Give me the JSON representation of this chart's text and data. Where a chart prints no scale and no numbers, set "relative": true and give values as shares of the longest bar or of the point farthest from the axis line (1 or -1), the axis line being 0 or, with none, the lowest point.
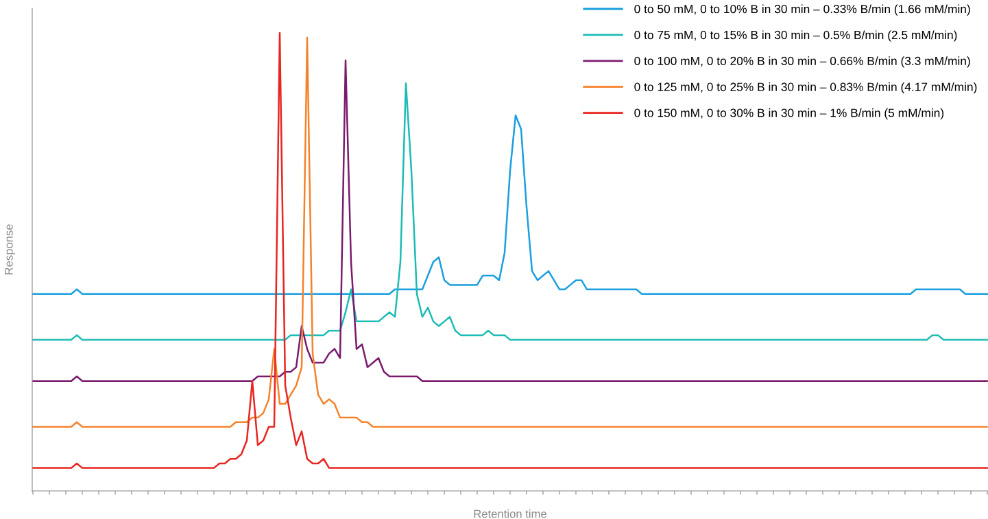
{
  "chart_data": {
    "type": "line",
    "relative": true,
    "xlabel": "Retention time",
    "ylabel": "Response",
    "legend": "top right",
    "grid": false,
    "marker": "none",
    "line_style": "solid",
    "categories": [
      null,
      null,
      null,
      null,
      null,
      null,
      null,
      null,
      null,
      null,
      null,
      null,
      null,
      null,
      null,
      null,
      null,
      null,
      null,
      null,
      null,
      null,
      null,
      null,
      null,
      null,
      null,
      null,
      null,
      null,
      null,
      null,
      null,
      null,
      null,
      null,
      null,
      null,
      null,
      null,
      null,
      null,
      null,
      null,
      null,
      null,
      null,
      null,
      null,
      null,
      null,
      null,
      null,
      null,
      null,
      null,
      null,
      null,
      null,
      null,
      null,
      null,
      null,
      null,
      null,
      null,
      null,
      null,
      null,
      null,
      null,
      null,
      null,
      null,
      null,
      null,
      null,
      null,
      null,
      null,
      null,
      null,
      null,
      null,
      null,
      null,
      null,
      null,
      null,
      null,
      null,
      null,
      null,
      null,
      null,
      null,
      null,
      null,
      null,
      null,
      null,
      null,
      null,
      null,
      null,
      null,
      null,
      null,
      null,
      null,
      null,
      null,
      null,
      null,
      null,
      null,
      null,
      null,
      null,
      null,
      null,
      null,
      null,
      null,
      null,
      null,
      null,
      null,
      null,
      null,
      null,
      null,
      null,
      null,
      null,
      null,
      null,
      null,
      null,
      null,
      null,
      null,
      null,
      null,
      null,
      null,
      null,
      null,
      null,
      null,
      null,
      null,
      null,
      null,
      null,
      null,
      null,
      null,
      null,
      null,
      null,
      null,
      null,
      null,
      null,
      null,
      null,
      null,
      null,
      null,
      null,
      null,
      null,
      null,
      null
    ],
    "series": [
      {
        "name": "0 to 50 mM, 0 to 10% B in 30 min – 0.33% B/min (1.66 mM/min)",
        "color": "#1a9fe0",
        "values": [
          0.43,
          0.43,
          0.43,
          0.43,
          0.43,
          0.43,
          0.43,
          0.43,
          0.44,
          0.43,
          0.43,
          0.43,
          0.43,
          0.43,
          0.43,
          0.43,
          0.43,
          0.43,
          0.43,
          0.43,
          0.43,
          0.43,
          0.43,
          0.43,
          0.43,
          0.43,
          0.43,
          0.43,
          0.43,
          0.43,
          0.43,
          0.43,
          0.43,
          0.43,
          0.43,
          0.43,
          0.43,
          0.43,
          0.43,
          0.43,
          0.43,
          0.43,
          0.43,
          0.43,
          0.43,
          0.43,
          0.43,
          0.43,
          0.43,
          0.43,
          0.43,
          0.43,
          0.43,
          0.43,
          0.43,
          0.43,
          0.43,
          0.43,
          0.43,
          0.43,
          0.43,
          0.43,
          0.43,
          0.43,
          0.43,
          0.43,
          0.44,
          0.44,
          0.44,
          0.44,
          0.44,
          0.44,
          0.47,
          0.5,
          0.51,
          0.46,
          0.45,
          0.45,
          0.45,
          0.45,
          0.45,
          0.45,
          0.47,
          0.47,
          0.47,
          0.46,
          0.52,
          0.7,
          0.82,
          0.79,
          0.62,
          0.48,
          0.46,
          0.47,
          0.48,
          0.46,
          0.44,
          0.44,
          0.45,
          0.46,
          0.46,
          0.44,
          0.44,
          0.44,
          0.44,
          0.44,
          0.44,
          0.44,
          0.44,
          0.44,
          0.44,
          0.43,
          0.43,
          0.43,
          0.43,
          0.43,
          0.43,
          0.43,
          0.43,
          0.43,
          0.43,
          0.43,
          0.43,
          0.43,
          0.43,
          0.43,
          0.43,
          0.43,
          0.43,
          0.43,
          0.43,
          0.43,
          0.43,
          0.43,
          0.43,
          0.43,
          0.43,
          0.43,
          0.43,
          0.43,
          0.43,
          0.43,
          0.43,
          0.43,
          0.43,
          0.43,
          0.43,
          0.43,
          0.43,
          0.43,
          0.43,
          0.43,
          0.43,
          0.43,
          0.43,
          0.43,
          0.43,
          0.43,
          0.43,
          0.43,
          0.43,
          0.44,
          0.44,
          0.44,
          0.44,
          0.44,
          0.44,
          0.44,
          0.44,
          0.44,
          0.43,
          0.43,
          0.43,
          0.43,
          0.43
        ]
      },
      {
        "name": "0 to 75 mM, 0 to 15% B in 30 min – 0.5% B/min (2.5 mM/min)",
        "color": "#1bbcb4",
        "values": [
          0.33,
          0.33,
          0.33,
          0.33,
          0.33,
          0.33,
          0.33,
          0.33,
          0.34,
          0.33,
          0.33,
          0.33,
          0.33,
          0.33,
          0.33,
          0.33,
          0.33,
          0.33,
          0.33,
          0.33,
          0.33,
          0.33,
          0.33,
          0.33,
          0.33,
          0.33,
          0.33,
          0.33,
          0.33,
          0.33,
          0.33,
          0.33,
          0.33,
          0.33,
          0.33,
          0.33,
          0.33,
          0.33,
          0.33,
          0.33,
          0.33,
          0.33,
          0.33,
          0.33,
          0.33,
          0.33,
          0.33,
          0.34,
          0.34,
          0.34,
          0.34,
          0.34,
          0.34,
          0.34,
          0.35,
          0.35,
          0.35,
          0.39,
          0.44,
          0.37,
          0.37,
          0.37,
          0.37,
          0.37,
          0.38,
          0.39,
          0.38,
          0.5,
          0.89,
          0.7,
          0.43,
          0.38,
          0.4,
          0.37,
          0.36,
          0.37,
          0.38,
          0.35,
          0.34,
          0.34,
          0.34,
          0.34,
          0.34,
          0.35,
          0.34,
          0.34,
          0.34,
          0.33,
          0.33,
          0.33,
          0.33,
          0.33,
          0.33,
          0.33,
          0.33,
          0.33,
          0.33,
          0.33,
          0.33,
          0.33,
          0.33,
          0.33,
          0.33,
          0.33,
          0.33,
          0.33,
          0.33,
          0.33,
          0.33,
          0.33,
          0.33,
          0.33,
          0.33,
          0.33,
          0.33,
          0.33,
          0.33,
          0.33,
          0.33,
          0.33,
          0.33,
          0.33,
          0.33,
          0.33,
          0.33,
          0.33,
          0.33,
          0.33,
          0.33,
          0.33,
          0.33,
          0.33,
          0.33,
          0.33,
          0.33,
          0.33,
          0.33,
          0.33,
          0.33,
          0.33,
          0.33,
          0.33,
          0.33,
          0.33,
          0.33,
          0.33,
          0.33,
          0.33,
          0.33,
          0.33,
          0.33,
          0.33,
          0.33,
          0.33,
          0.33,
          0.33,
          0.33,
          0.33,
          0.33,
          0.33,
          0.33,
          0.33,
          0.33,
          0.33,
          0.34,
          0.34,
          0.33,
          0.33,
          0.33,
          0.33,
          0.33,
          0.33,
          0.33,
          0.33,
          0.33
        ]
      },
      {
        "name": "0 to 100 mM, 0 to 20% B in 30 min – 0.66% B/min (3.3 mM/min)",
        "color": "#7b1a6e",
        "values": [
          0.24,
          0.24,
          0.24,
          0.24,
          0.24,
          0.24,
          0.24,
          0.24,
          0.25,
          0.24,
          0.24,
          0.24,
          0.24,
          0.24,
          0.24,
          0.24,
          0.24,
          0.24,
          0.24,
          0.24,
          0.24,
          0.24,
          0.24,
          0.24,
          0.24,
          0.24,
          0.24,
          0.24,
          0.24,
          0.24,
          0.24,
          0.24,
          0.24,
          0.24,
          0.24,
          0.24,
          0.24,
          0.24,
          0.24,
          0.24,
          0.24,
          0.25,
          0.25,
          0.25,
          0.25,
          0.25,
          0.26,
          0.26,
          0.27,
          0.36,
          0.31,
          0.28,
          0.28,
          0.28,
          0.3,
          0.31,
          0.29,
          0.94,
          0.5,
          0.31,
          0.32,
          0.27,
          0.28,
          0.29,
          0.26,
          0.25,
          0.25,
          0.25,
          0.25,
          0.25,
          0.25,
          0.24,
          0.24,
          0.24,
          0.24,
          0.24,
          0.24,
          0.24,
          0.24,
          0.24,
          0.24,
          0.24,
          0.24,
          0.24,
          0.24,
          0.24,
          0.24,
          0.24,
          0.24,
          0.24,
          0.24,
          0.24,
          0.24,
          0.24,
          0.24,
          0.24,
          0.24,
          0.24,
          0.24,
          0.24,
          0.24,
          0.24,
          0.24,
          0.24,
          0.24,
          0.24,
          0.24,
          0.24,
          0.24,
          0.24,
          0.24,
          0.24,
          0.24,
          0.24,
          0.24,
          0.24,
          0.24,
          0.24,
          0.24,
          0.24,
          0.24,
          0.24,
          0.24,
          0.24,
          0.24,
          0.24,
          0.24,
          0.24,
          0.24,
          0.24,
          0.24,
          0.24,
          0.24,
          0.24,
          0.24,
          0.24,
          0.24,
          0.24,
          0.24,
          0.24,
          0.24,
          0.24,
          0.24,
          0.24,
          0.24,
          0.24,
          0.24,
          0.24,
          0.24,
          0.24,
          0.24,
          0.24,
          0.24,
          0.24,
          0.24,
          0.24,
          0.24,
          0.24,
          0.24,
          0.24,
          0.24,
          0.24,
          0.24,
          0.24,
          0.24,
          0.24,
          0.24,
          0.24,
          0.24,
          0.24,
          0.24,
          0.24,
          0.24,
          0.24,
          0.24
        ]
      },
      {
        "name": "0 to 125 mM, 0 to 25% B in 30 min – 0.83% B/min (4.17 mM/min)",
        "color": "#f5822a",
        "values": [
          0.14,
          0.14,
          0.14,
          0.14,
          0.14,
          0.14,
          0.14,
          0.14,
          0.15,
          0.14,
          0.14,
          0.14,
          0.14,
          0.14,
          0.14,
          0.14,
          0.14,
          0.14,
          0.14,
          0.14,
          0.14,
          0.14,
          0.14,
          0.14,
          0.14,
          0.14,
          0.14,
          0.14,
          0.14,
          0.14,
          0.14,
          0.14,
          0.14,
          0.14,
          0.14,
          0.14,
          0.14,
          0.15,
          0.15,
          0.15,
          0.16,
          0.16,
          0.17,
          0.2,
          0.31,
          0.19,
          0.19,
          0.21,
          0.23,
          0.27,
          0.99,
          0.3,
          0.21,
          0.19,
          0.2,
          0.19,
          0.16,
          0.16,
          0.16,
          0.16,
          0.15,
          0.15,
          0.14,
          0.14,
          0.14,
          0.14,
          0.14,
          0.14,
          0.14,
          0.14,
          0.14,
          0.14,
          0.14,
          0.14,
          0.14,
          0.14,
          0.14,
          0.14,
          0.14,
          0.14,
          0.14,
          0.14,
          0.14,
          0.14,
          0.14,
          0.14,
          0.14,
          0.14,
          0.14,
          0.14,
          0.14,
          0.14,
          0.14,
          0.14,
          0.14,
          0.14,
          0.14,
          0.14,
          0.14,
          0.14,
          0.14,
          0.14,
          0.14,
          0.14,
          0.14,
          0.14,
          0.14,
          0.14,
          0.14,
          0.14,
          0.14,
          0.14,
          0.14,
          0.14,
          0.14,
          0.14,
          0.14,
          0.14,
          0.14,
          0.14,
          0.14,
          0.14,
          0.14,
          0.14,
          0.14,
          0.14,
          0.14,
          0.14,
          0.14,
          0.14,
          0.14,
          0.14,
          0.14,
          0.14,
          0.14,
          0.14,
          0.14,
          0.14,
          0.14,
          0.14,
          0.14,
          0.14,
          0.14,
          0.14,
          0.14,
          0.14,
          0.14,
          0.14,
          0.14,
          0.14,
          0.14,
          0.14,
          0.14,
          0.14,
          0.14,
          0.14,
          0.14,
          0.14,
          0.14,
          0.14,
          0.14,
          0.14,
          0.14,
          0.14,
          0.14,
          0.14,
          0.14,
          0.14,
          0.14,
          0.14,
          0.14,
          0.14,
          0.14,
          0.14,
          0.14
        ]
      },
      {
        "name": "0 to 150 mM, 0 to 30% B in 30 min – 1% B/min (5 mM/min)",
        "color": "#e8251f",
        "values": [
          0.05,
          0.05,
          0.05,
          0.05,
          0.05,
          0.05,
          0.05,
          0.05,
          0.06,
          0.05,
          0.05,
          0.05,
          0.05,
          0.05,
          0.05,
          0.05,
          0.05,
          0.05,
          0.05,
          0.05,
          0.05,
          0.05,
          0.05,
          0.05,
          0.05,
          0.05,
          0.05,
          0.05,
          0.05,
          0.05,
          0.05,
          0.05,
          0.05,
          0.05,
          0.06,
          0.06,
          0.07,
          0.07,
          0.08,
          0.11,
          0.24,
          0.1,
          0.11,
          0.14,
          0.14,
          1.0,
          0.23,
          0.16,
          0.1,
          0.13,
          0.07,
          0.06,
          0.06,
          0.07,
          0.05,
          0.05,
          0.05,
          0.05,
          0.05,
          0.05,
          0.05,
          0.05,
          0.05,
          0.05,
          0.05,
          0.05,
          0.05,
          0.05,
          0.05,
          0.05,
          0.05,
          0.05,
          0.05,
          0.05,
          0.05,
          0.05,
          0.05,
          0.05,
          0.05,
          0.05,
          0.05,
          0.05,
          0.05,
          0.05,
          0.05,
          0.05,
          0.05,
          0.05,
          0.05,
          0.05,
          0.05,
          0.05,
          0.05,
          0.05,
          0.05,
          0.05,
          0.05,
          0.05,
          0.05,
          0.05,
          0.05,
          0.05,
          0.05,
          0.05,
          0.05,
          0.05,
          0.05,
          0.05,
          0.05,
          0.05,
          0.05,
          0.05,
          0.05,
          0.05,
          0.05,
          0.05,
          0.05,
          0.05,
          0.05,
          0.05,
          0.05,
          0.05,
          0.05,
          0.05,
          0.05,
          0.05,
          0.05,
          0.05,
          0.05,
          0.05,
          0.05,
          0.05,
          0.05,
          0.05,
          0.05,
          0.05,
          0.05,
          0.05,
          0.05,
          0.05,
          0.05,
          0.05,
          0.05,
          0.05,
          0.05,
          0.05,
          0.05,
          0.05,
          0.05,
          0.05,
          0.05,
          0.05,
          0.05,
          0.05,
          0.05,
          0.05,
          0.05,
          0.05,
          0.05,
          0.05,
          0.05,
          0.05,
          0.05,
          0.05,
          0.05,
          0.05,
          0.05,
          0.05,
          0.05,
          0.05,
          0.05,
          0.05,
          0.05,
          0.05,
          0.05
        ]
      }
    ]
  }
}
